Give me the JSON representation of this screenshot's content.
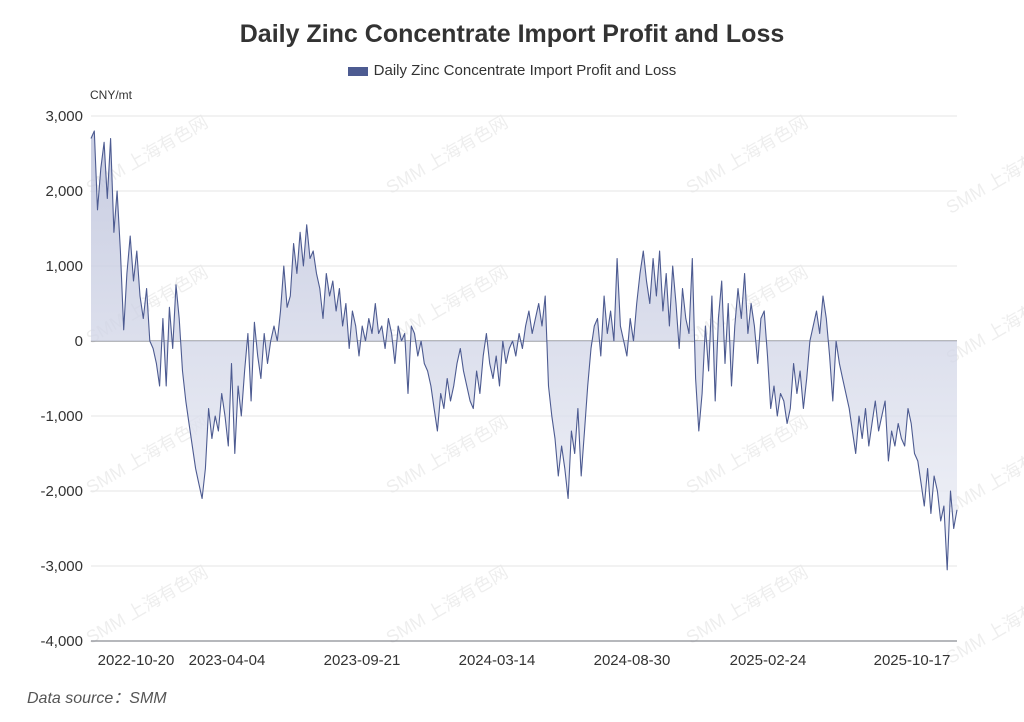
{
  "chart_data": {
    "type": "area",
    "title": "Daily Zinc Concentrate Import Profit and Loss",
    "legend": [
      "Daily Zinc Concentrate Import Profit and Loss"
    ],
    "legend_position": "top-center",
    "ylabel": "CNY/mt",
    "ylim": [
      -4000,
      3000
    ],
    "yticks": [
      3000,
      2000,
      1000,
      0,
      -1000,
      -2000,
      -3000,
      -4000
    ],
    "ytick_labels": [
      "3,000",
      "2,000",
      "1,000",
      "0",
      "-1,000",
      "-2,000",
      "-3,000",
      "-4,000"
    ],
    "xtick_labels": [
      "2022-10-20",
      "2023-04-04",
      "2023-09-21",
      "2024-03-14",
      "2024-08-30",
      "2025-02-24",
      "2025-10-17"
    ],
    "series": [
      {
        "name": "Daily Zinc Concentrate Import Profit and Loss",
        "values": [
          2700,
          2800,
          1750,
          2300,
          2650,
          1900,
          2700,
          1450,
          2000,
          1200,
          150,
          900,
          1400,
          800,
          1200,
          600,
          300,
          700,
          0,
          -100,
          -300,
          -600,
          300,
          -600,
          450,
          -100,
          750,
          300,
          -400,
          -800,
          -1100,
          -1400,
          -1700,
          -1900,
          -2100,
          -1700,
          -900,
          -1300,
          -1000,
          -1200,
          -700,
          -1000,
          -1400,
          -300,
          -1500,
          -600,
          -1000,
          -400,
          100,
          -800,
          250,
          -200,
          -500,
          100,
          -300,
          0,
          200,
          0,
          400,
          1000,
          450,
          600,
          1300,
          900,
          1450,
          1000,
          1550,
          1100,
          1200,
          900,
          700,
          300,
          900,
          600,
          800,
          400,
          700,
          200,
          500,
          -100,
          400,
          200,
          -200,
          200,
          0,
          300,
          100,
          500,
          100,
          200,
          -100,
          300,
          100,
          -300,
          200,
          0,
          100,
          -700,
          200,
          100,
          -200,
          0,
          -300,
          -400,
          -600,
          -900,
          -1200,
          -700,
          -900,
          -500,
          -800,
          -600,
          -300,
          -100,
          -400,
          -600,
          -800,
          -900,
          -400,
          -700,
          -200,
          100,
          -300,
          -500,
          -200,
          -600,
          0,
          -300,
          -100,
          0,
          -200,
          100,
          -100,
          200,
          400,
          100,
          300,
          500,
          200,
          600,
          -600,
          -1000,
          -1300,
          -1800,
          -1400,
          -1700,
          -2100,
          -1200,
          -1500,
          -900,
          -1800,
          -1200,
          -600,
          -100,
          200,
          300,
          -200,
          600,
          100,
          400,
          0,
          1100,
          200,
          0,
          -200,
          300,
          0,
          500,
          900,
          1200,
          800,
          500,
          1100,
          600,
          1200,
          400,
          900,
          200,
          1000,
          500,
          -100,
          700,
          300,
          100,
          1100,
          -500,
          -1200,
          -700,
          200,
          -400,
          600,
          -800,
          300,
          800,
          -300,
          500,
          -600,
          200,
          700,
          300,
          900,
          100,
          500,
          200,
          -300,
          300,
          400,
          -200,
          -900,
          -600,
          -1000,
          -700,
          -800,
          -1100,
          -900,
          -300,
          -700,
          -400,
          -900,
          -500,
          0,
          200,
          400,
          100,
          600,
          300,
          -200,
          -800,
          0,
          -300,
          -500,
          -700,
          -900,
          -1200,
          -1500,
          -1000,
          -1300,
          -900,
          -1400,
          -1100,
          -800,
          -1200,
          -1000,
          -800,
          -1600,
          -1200,
          -1400,
          -1100,
          -1300,
          -1400,
          -900,
          -1100,
          -1500,
          -1600,
          -1900,
          -2200,
          -1700,
          -2300,
          -1800,
          -2000,
          -2400,
          -2200,
          -3050,
          -2000,
          -2500,
          -2250
        ]
      }
    ],
    "line_color": "#4d5b91",
    "fill_color": "#dfe2ee",
    "grid": true
  },
  "watermark": "SMM 上海有色网",
  "source": "Data source：SMM"
}
